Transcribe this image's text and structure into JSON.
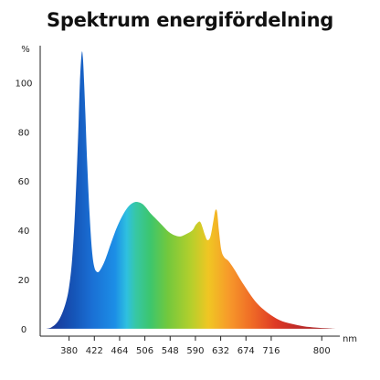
{
  "chart_data": {
    "type": "area",
    "title": "Spektrum energifördelning",
    "ylabel": "%",
    "xlabel": "nm",
    "xlim": [
      332,
      830
    ],
    "ylim": [
      -3,
      115
    ],
    "x_ticks": [
      380,
      422,
      464,
      506,
      548,
      590,
      632,
      674,
      716,
      800
    ],
    "y_ticks": [
      0,
      20,
      40,
      60,
      80,
      100
    ],
    "grid": false,
    "legend": "none",
    "series": [
      {
        "x": [
          340,
          350,
          360,
          368,
          375,
          380,
          385,
          390,
          395,
          398,
          401,
          403,
          405,
          407,
          410,
          414,
          418,
          422,
          427,
          432,
          440,
          450,
          460,
          470,
          480,
          490,
          500,
          507,
          515,
          525,
          535,
          545,
          555,
          565,
          575,
          585,
          590,
          596,
          599,
          602,
          606,
          610,
          615,
          620,
          623,
          626,
          629,
          633,
          638,
          645,
          655,
          670,
          690,
          710,
          730,
          750,
          770,
          790,
          810,
          825
        ],
        "y": [
          0,
          0.5,
          2.5,
          6,
          11,
          17,
          28,
          48,
          78,
          100,
          112,
          110,
          100,
          88,
          68,
          47,
          32,
          25,
          23,
          24,
          28,
          35,
          41.5,
          46.5,
          50,
          51.5,
          51,
          49.5,
          47,
          44.5,
          42,
          39.5,
          38,
          37.5,
          38.5,
          40,
          42,
          43.5,
          43,
          41,
          38,
          36,
          37.5,
          44,
          48,
          47.5,
          40,
          32,
          29,
          27.5,
          24,
          18,
          11,
          6.5,
          3.5,
          2,
          1,
          0.5,
          0.2,
          0
        ]
      }
    ],
    "colors": {
      "gradient_stops": [
        "#1a2f8f",
        "#1555b8",
        "#1a6fd4",
        "#1c8ee6",
        "#2ec0e0",
        "#37c7a6",
        "#3cc66e",
        "#72c83d",
        "#b4cf2c",
        "#f0c623",
        "#f79a2a",
        "#ef6a26",
        "#de3a25",
        "#c12b27",
        "#9c2226"
      ],
      "gradient_positions": [
        0,
        0.1,
        0.16,
        0.24,
        0.28,
        0.31,
        0.36,
        0.42,
        0.5,
        0.56,
        0.63,
        0.71,
        0.79,
        0.86,
        1
      ],
      "axis": "#222222"
    }
  }
}
